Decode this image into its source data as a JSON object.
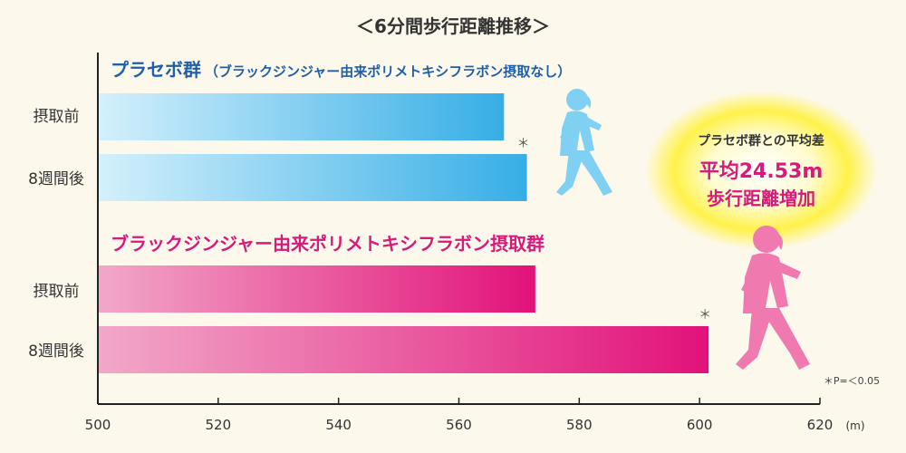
{
  "chart_data": {
    "type": "bar",
    "orientation": "horizontal",
    "title": "＜6分間歩行距離推移＞",
    "unit": "(m)",
    "xlim": [
      500,
      620
    ],
    "xticks": [
      "500",
      "520",
      "540",
      "560",
      "580",
      "600",
      "620"
    ],
    "groups": [
      {
        "name": "プラセボ群",
        "subtitle": "（ブラックジンジャー由来ポリメトキシフラボン摂取なし）",
        "color": "#4db8ea",
        "bars": [
          {
            "category": "摂取前",
            "value": 567.5,
            "sig": ""
          },
          {
            "category": "8週間後",
            "value": 571.3,
            "sig": "＊"
          }
        ]
      },
      {
        "name": "ブラックジンジャー由来ポリメトキシフラボン摂取群",
        "subtitle": "",
        "color": "#e0347f",
        "bars": [
          {
            "category": "摂取前",
            "value": 572.7,
            "sig": ""
          },
          {
            "category": "8週間後",
            "value": 601.5,
            "sig": "＊"
          }
        ]
      }
    ],
    "callout": {
      "line1": "プラセボ群との平均差",
      "line2": "平均24.53m",
      "line3": "歩行距離増加"
    },
    "note": "＊P=＜0.05"
  },
  "colors": {
    "blue_light": "#cfeefb",
    "blue_dark": "#3fb2e8",
    "pink_light": "#f3a9c8",
    "pink_dark": "#e0157a",
    "callout_glow": "#fff24a"
  }
}
